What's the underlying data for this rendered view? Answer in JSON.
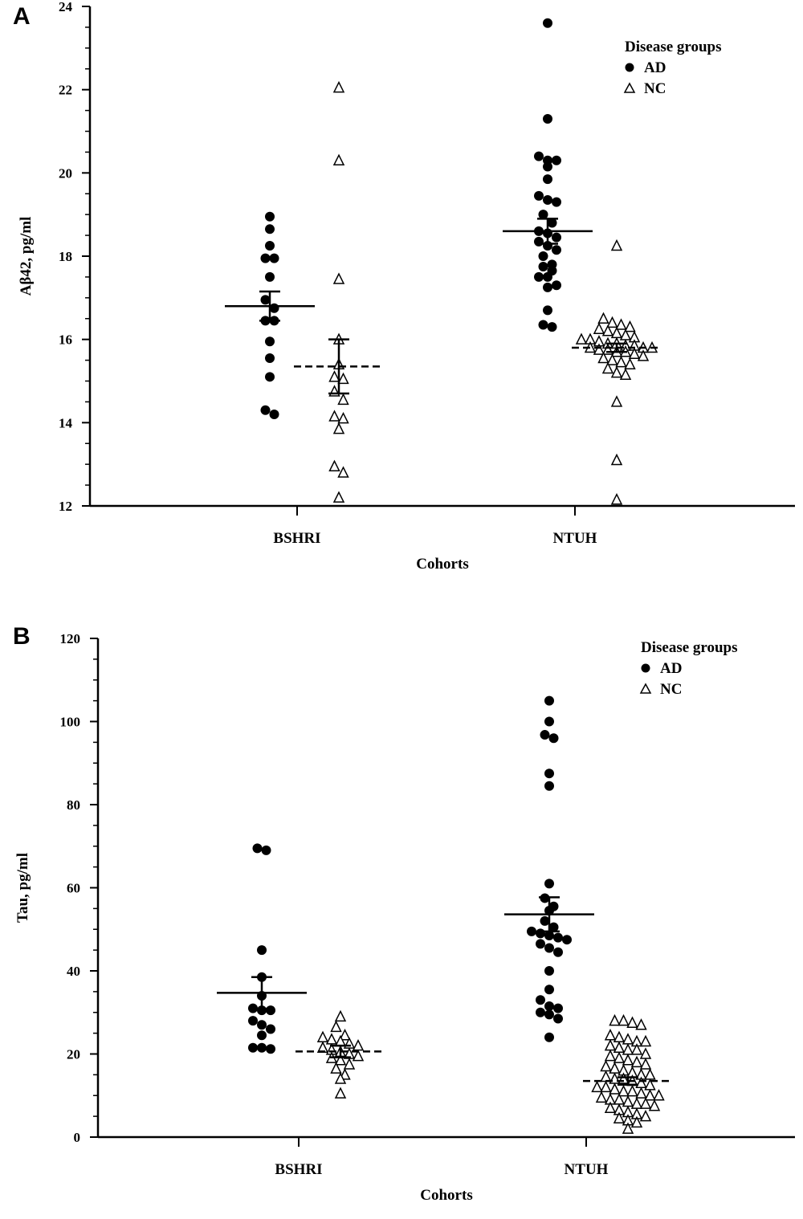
{
  "chart_data": [
    {
      "panel": "A",
      "type": "scatter",
      "subtype": "dot-plot with mean and SEM",
      "xlabel": "Cohorts",
      "ylabel": "Aβ42, pg/ml",
      "categories": [
        "BSHRI",
        "NTUH"
      ],
      "ylim": [
        12,
        24
      ],
      "yticks": [
        12,
        14,
        16,
        18,
        20,
        22,
        24
      ],
      "legend": {
        "title": "Disease groups",
        "placement": "top-right",
        "entries": [
          "AD",
          "NC"
        ]
      },
      "series": [
        {
          "name": "AD",
          "cohort": "BSHRI",
          "marker": "filled-circle",
          "mean": 16.8,
          "sem_low": 16.45,
          "sem_high": 17.15,
          "values": [
            18.95,
            18.65,
            18.25,
            17.95,
            17.95,
            17.5,
            16.95,
            16.75,
            16.45,
            16.45,
            15.95,
            15.55,
            15.1,
            14.3,
            14.2
          ]
        },
        {
          "name": "NC",
          "cohort": "BSHRI",
          "marker": "open-triangle",
          "mean": 15.35,
          "sem_low": 14.7,
          "sem_high": 16.0,
          "values": [
            22.05,
            20.3,
            17.45,
            16.0,
            15.4,
            15.1,
            15.05,
            14.75,
            14.55,
            14.15,
            14.1,
            13.85,
            12.95,
            12.8,
            12.2
          ]
        },
        {
          "name": "AD",
          "cohort": "NTUH",
          "marker": "filled-circle",
          "mean": 18.6,
          "sem_low": 18.3,
          "sem_high": 18.9,
          "values": [
            23.6,
            21.3,
            20.4,
            20.3,
            20.3,
            20.15,
            19.85,
            19.45,
            19.35,
            19.3,
            19.0,
            18.8,
            18.6,
            18.55,
            18.45,
            18.35,
            18.25,
            18.15,
            18.0,
            17.8,
            17.75,
            17.65,
            17.5,
            17.5,
            17.3,
            17.25,
            16.7,
            16.35,
            16.3
          ]
        },
        {
          "name": "NC",
          "cohort": "NTUH",
          "marker": "open-triangle",
          "mean": 15.8,
          "sem_low": 15.7,
          "sem_high": 15.9,
          "values": [
            18.25,
            16.5,
            16.4,
            16.35,
            16.3,
            16.25,
            16.2,
            16.15,
            16.1,
            16.05,
            16.0,
            16.0,
            15.95,
            15.9,
            15.9,
            15.85,
            15.85,
            15.8,
            15.8,
            15.8,
            15.75,
            15.75,
            15.7,
            15.7,
            15.65,
            15.6,
            15.55,
            15.5,
            15.45,
            15.4,
            15.3,
            15.2,
            15.15,
            14.5,
            13.1,
            12.15
          ]
        }
      ]
    },
    {
      "panel": "B",
      "type": "scatter",
      "subtype": "dot-plot with mean and SEM",
      "xlabel": "Cohorts",
      "ylabel": "Tau, pg/ml",
      "categories": [
        "BSHRI",
        "NTUH"
      ],
      "ylim": [
        0,
        120
      ],
      "yticks": [
        0,
        20,
        40,
        60,
        80,
        100,
        120
      ],
      "legend": {
        "title": "Disease groups",
        "placement": "top-right",
        "entries": [
          "AD",
          "NC"
        ]
      },
      "series": [
        {
          "name": "AD",
          "cohort": "BSHRI",
          "marker": "filled-circle",
          "mean": 34.7,
          "sem_low": 30.9,
          "sem_high": 38.5,
          "values": [
            69.5,
            69.0,
            45.0,
            38.5,
            34.0,
            31.0,
            30.5,
            30.5,
            28.0,
            27.0,
            26.0,
            24.5,
            21.5,
            21.5,
            21.2
          ]
        },
        {
          "name": "NC",
          "cohort": "BSHRI",
          "marker": "open-triangle",
          "mean": 20.6,
          "sem_low": 19.2,
          "sem_high": 22.0,
          "values": [
            29.0,
            26.5,
            24.5,
            24.0,
            23.5,
            23.0,
            22.5,
            22.0,
            21.5,
            21.0,
            20.5,
            20.0,
            19.5,
            19.0,
            18.5,
            17.5,
            16.5,
            15.0,
            14.0,
            10.5
          ]
        },
        {
          "name": "AD",
          "cohort": "NTUH",
          "marker": "filled-circle",
          "mean": 53.6,
          "sem_low": 49.5,
          "sem_high": 57.7,
          "values": [
            105.0,
            100.0,
            96.8,
            96.0,
            87.5,
            84.5,
            61.0,
            57.5,
            55.5,
            54.5,
            52.0,
            50.5,
            49.5,
            49.0,
            48.5,
            48.0,
            47.5,
            46.5,
            45.5,
            44.5,
            40.0,
            35.5,
            33.0,
            31.5,
            31.0,
            30.0,
            29.5,
            28.5,
            24.0
          ]
        },
        {
          "name": "NC",
          "cohort": "NTUH",
          "marker": "open-triangle",
          "mean": 13.5,
          "sem_low": 12.6,
          "sem_high": 14.4,
          "values": [
            28.0,
            28.0,
            27.5,
            27.0,
            24.5,
            24.0,
            23.5,
            23.0,
            23.0,
            22.0,
            21.5,
            21.0,
            21.0,
            20.0,
            19.5,
            19.0,
            18.5,
            18.0,
            17.5,
            17.0,
            16.5,
            16.0,
            15.5,
            15.0,
            15.0,
            14.5,
            14.0,
            14.0,
            13.5,
            13.0,
            12.5,
            12.0,
            12.0,
            11.5,
            11.0,
            11.0,
            10.5,
            10.0,
            10.0,
            9.5,
            9.0,
            9.0,
            8.5,
            8.0,
            8.0,
            7.5,
            7.0,
            6.5,
            6.0,
            5.5,
            5.0,
            4.5,
            4.0,
            3.5,
            2.0
          ]
        }
      ]
    }
  ]
}
